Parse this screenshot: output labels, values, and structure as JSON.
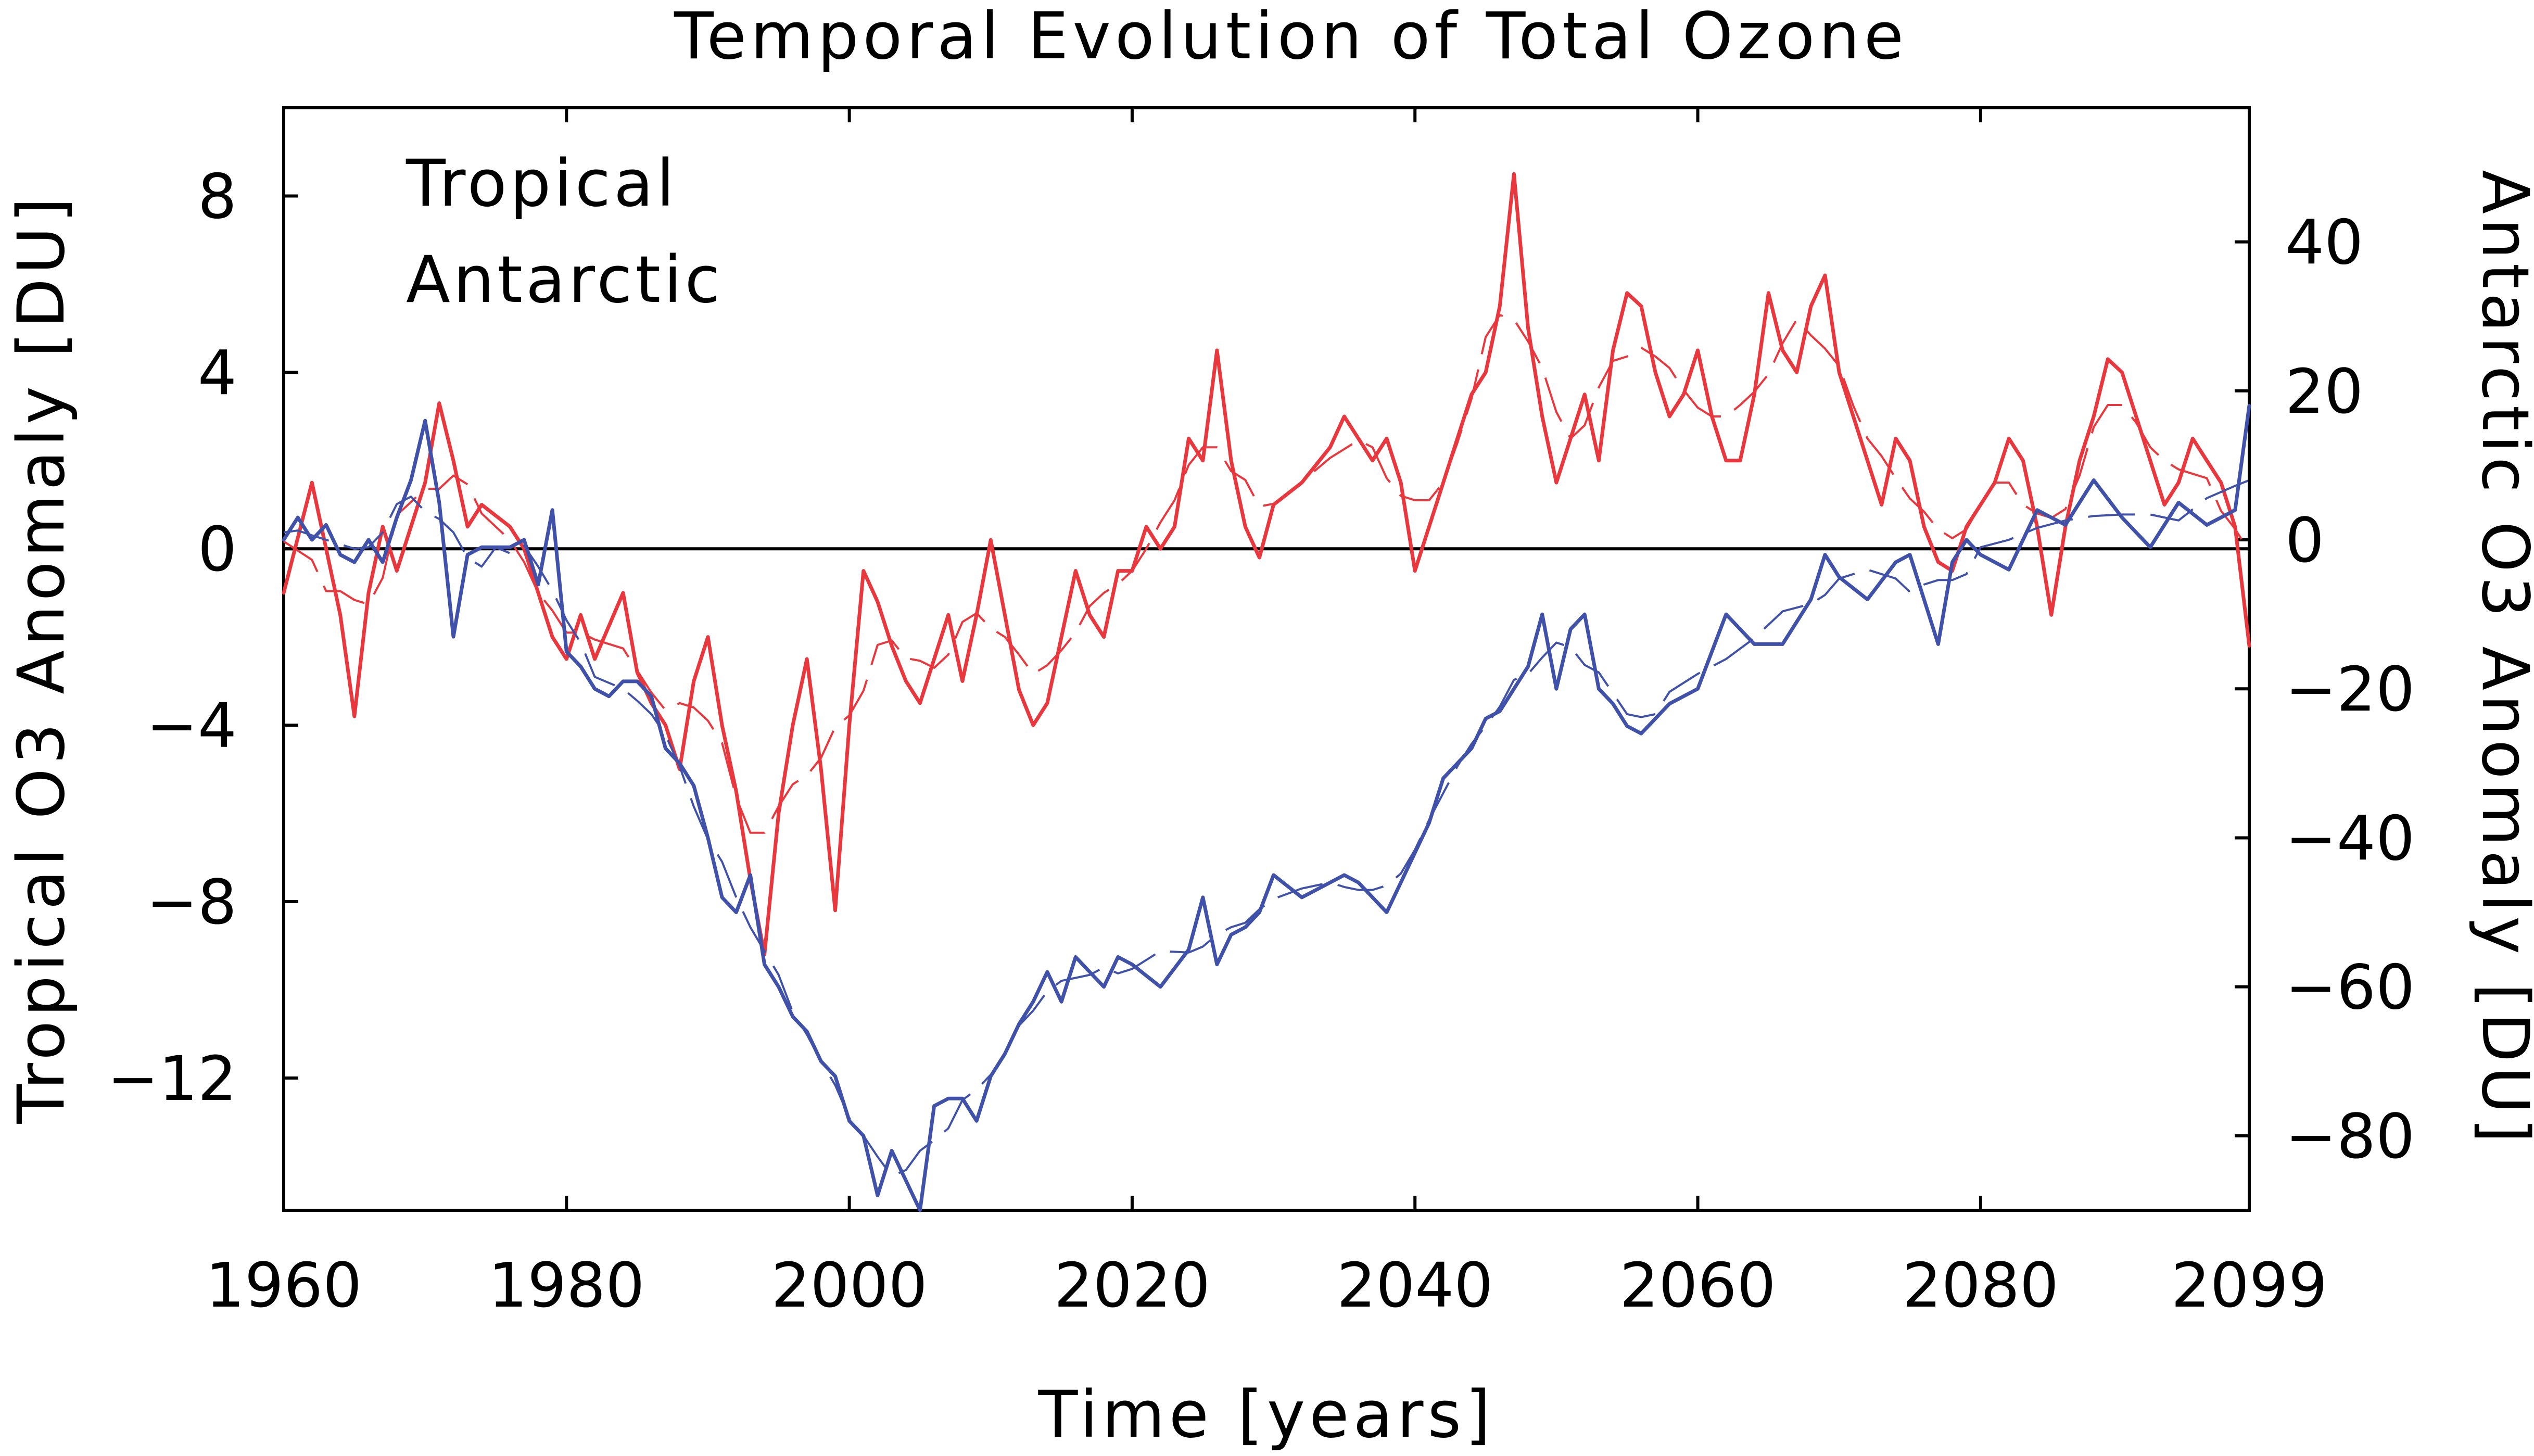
{
  "chart_data": {
    "type": "line",
    "title": "Temporal Evolution of Total Ozone",
    "xlabel": "Time [years]",
    "ylabel_left": "Tropical O3 Anomaly [DU]",
    "ylabel_right": "Antarctic O3 Anomaly [DU]",
    "xlim": [
      1960,
      2099
    ],
    "ylim_left": [
      -15,
      10
    ],
    "ylim_right": [
      -90,
      58
    ],
    "x_ticks": [
      1960,
      1980,
      2000,
      2020,
      2040,
      2060,
      2080,
      2099
    ],
    "x_tick_labels": [
      "1960",
      "1980",
      "2000",
      "2020",
      "2040",
      "2060",
      "2080",
      "2099"
    ],
    "y_left_ticks": [
      8,
      4,
      0,
      -4,
      -8,
      -12
    ],
    "y_left_tick_labels": [
      "8",
      "4",
      "0",
      "−4",
      "−8",
      "−12"
    ],
    "y_right_ticks": [
      40,
      20,
      0,
      -20,
      -40,
      -60,
      -80
    ],
    "y_right_tick_labels": [
      "40",
      "20",
      "0",
      "−20",
      "−40",
      "−60",
      "−80"
    ],
    "zero_line": true,
    "grid": false,
    "legend_position": "top-left",
    "series": [
      {
        "name": "Tropical",
        "axis": "left",
        "color": "#e8373d",
        "x": [
          1960,
          1962,
          1963,
          1964,
          1965,
          1966,
          1967,
          1968,
          1970,
          1971,
          1972,
          1973,
          1974,
          1976,
          1977,
          1978,
          1979,
          1980,
          1981,
          1982,
          1984,
          1985,
          1986,
          1987,
          1988,
          1989,
          1990,
          1991,
          1992,
          1993,
          1994,
          1995,
          1996,
          1997,
          1998,
          1999,
          2000,
          2001,
          2002,
          2003,
          2004,
          2005,
          2006,
          2007,
          2008,
          2009,
          2010,
          2011,
          2012,
          2013,
          2014,
          2015,
          2016,
          2017,
          2018,
          2019,
          2020,
          2021,
          2022,
          2023,
          2024,
          2025,
          2026,
          2027,
          2028,
          2029,
          2030,
          2032,
          2034,
          2035,
          2036,
          2037,
          2038,
          2039,
          2040,
          2041,
          2042,
          2043,
          2044,
          2045,
          2046,
          2047,
          2048,
          2049,
          2050,
          2051,
          2052,
          2053,
          2054,
          2055,
          2056,
          2057,
          2058,
          2059,
          2060,
          2061,
          2062,
          2063,
          2064,
          2065,
          2066,
          2067,
          2068,
          2069,
          2070,
          2071,
          2072,
          2073,
          2074,
          2075,
          2076,
          2077,
          2078,
          2079,
          2080,
          2081,
          2082,
          2083,
          2084,
          2085,
          2086,
          2087,
          2088,
          2089,
          2090,
          2091,
          2092,
          2093,
          2094,
          2095,
          2096,
          2097,
          2098,
          2099
        ],
        "values": [
          -1.0,
          1.5,
          0.0,
          -1.5,
          -3.8,
          -1.0,
          0.5,
          -0.5,
          1.5,
          3.3,
          2.0,
          0.5,
          1.0,
          0.5,
          0.0,
          -1.0,
          -2.0,
          -2.5,
          -1.5,
          -2.5,
          -1.0,
          -2.8,
          -3.5,
          -4.0,
          -5.0,
          -3.0,
          -2.0,
          -4.0,
          -5.5,
          -7.5,
          -9.2,
          -6.0,
          -4.0,
          -2.5,
          -5.0,
          -8.2,
          -4.0,
          -0.5,
          -1.2,
          -2.2,
          -3.0,
          -3.5,
          -2.5,
          -1.5,
          -3.0,
          -1.5,
          0.2,
          -1.5,
          -3.2,
          -4.0,
          -3.5,
          -2.0,
          -0.5,
          -1.5,
          -2.0,
          -0.5,
          -0.5,
          0.5,
          0.0,
          0.5,
          2.5,
          2.0,
          4.5,
          2.0,
          0.5,
          -0.2,
          1.0,
          1.5,
          2.3,
          3.0,
          2.5,
          2.0,
          2.5,
          1.5,
          -0.5,
          0.5,
          1.5,
          2.5,
          3.5,
          4.0,
          5.5,
          8.5,
          5.0,
          3.0,
          1.5,
          2.5,
          3.5,
          2.0,
          4.5,
          5.8,
          5.5,
          4.0,
          3.0,
          3.5,
          4.5,
          3.0,
          2.0,
          2.0,
          3.5,
          5.8,
          4.5,
          4.0,
          5.5,
          6.2,
          4.0,
          3.0,
          2.0,
          1.0,
          2.5,
          2.0,
          0.5,
          -0.3,
          -0.5,
          0.5,
          1.0,
          1.5,
          2.5,
          2.0,
          0.5,
          -1.5,
          0.5,
          2.0,
          3.0,
          4.3,
          4.0,
          3.0,
          2.0,
          1.0,
          1.5,
          2.5,
          2.0,
          1.5,
          0.5,
          -2.2
        ]
      },
      {
        "name": "Antarctic",
        "axis": "right",
        "color": "#3f51a8",
        "x": [
          1960,
          1961,
          1962,
          1963,
          1964,
          1965,
          1966,
          1967,
          1968,
          1969,
          1970,
          1971,
          1972,
          1973,
          1974,
          1975,
          1976,
          1977,
          1978,
          1979,
          1980,
          1981,
          1982,
          1983,
          1984,
          1985,
          1986,
          1987,
          1988,
          1989,
          1990,
          1991,
          1992,
          1993,
          1994,
          1995,
          1996,
          1997,
          1998,
          1999,
          2000,
          2001,
          2002,
          2003,
          2004,
          2005,
          2006,
          2007,
          2008,
          2009,
          2010,
          2011,
          2012,
          2013,
          2014,
          2015,
          2016,
          2017,
          2018,
          2019,
          2020,
          2022,
          2024,
          2025,
          2026,
          2027,
          2028,
          2029,
          2030,
          2032,
          2034,
          2035,
          2036,
          2037,
          2038,
          2039,
          2040,
          2041,
          2042,
          2043,
          2044,
          2045,
          2046,
          2047,
          2048,
          2049,
          2050,
          2051,
          2052,
          2053,
          2054,
          2055,
          2056,
          2057,
          2058,
          2060,
          2062,
          2064,
          2066,
          2068,
          2069,
          2070,
          2072,
          2074,
          2075,
          2076,
          2077,
          2078,
          2079,
          2080,
          2082,
          2084,
          2086,
          2088,
          2090,
          2092,
          2094,
          2096,
          2098,
          2099
        ],
        "values": [
          0,
          3,
          0,
          2,
          -2,
          -3,
          0,
          -3,
          3,
          8,
          16,
          5,
          -13,
          -2,
          -1,
          -1,
          -1,
          0,
          -6,
          4,
          -15,
          -17,
          -20,
          -21,
          -19,
          -19,
          -21,
          -28,
          -30,
          -33,
          -40,
          -48,
          -50,
          -45,
          -57,
          -60,
          -64,
          -66,
          -70,
          -72,
          -78,
          -80,
          -88,
          -82,
          -86,
          -91,
          -76,
          -75,
          -75,
          -78,
          -72,
          -69,
          -65,
          -62,
          -58,
          -62,
          -56,
          -58,
          -60,
          -56,
          -57,
          -60,
          -55,
          -48,
          -57,
          -53,
          -52,
          -50,
          -45,
          -48,
          -46,
          -45,
          -46,
          -48,
          -50,
          -46,
          -42,
          -38,
          -32,
          -30,
          -28,
          -24,
          -23,
          -20,
          -17,
          -10,
          -20,
          -12,
          -10,
          -20,
          -22,
          -25,
          -26,
          -24,
          -22,
          -20,
          -10,
          -14,
          -14,
          -8,
          -2,
          -5,
          -8,
          -3,
          -2,
          -8,
          -14,
          -3,
          0,
          -2,
          -4,
          4,
          2,
          8,
          3,
          -1,
          5,
          2,
          4,
          18
        ]
      }
    ]
  }
}
